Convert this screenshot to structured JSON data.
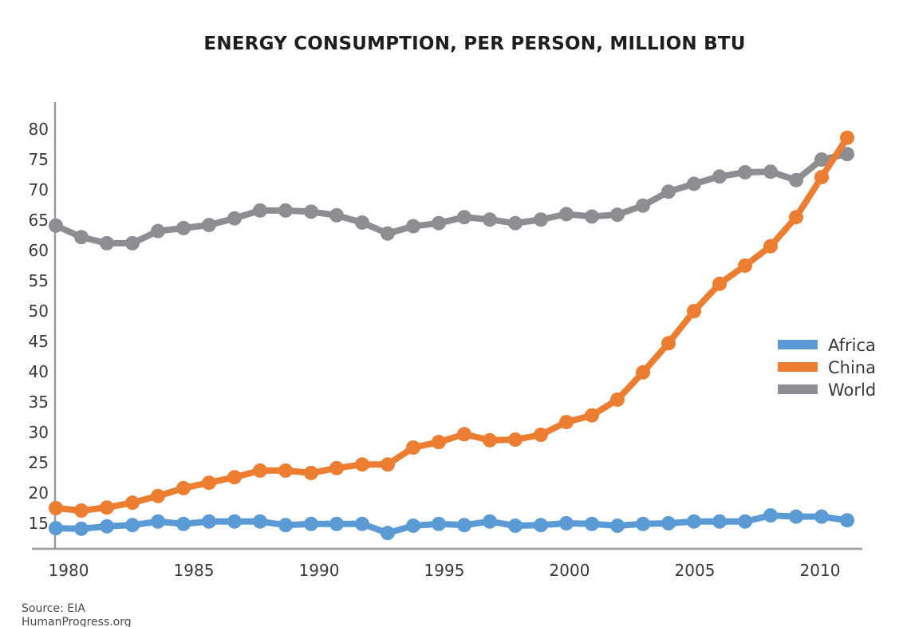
{
  "chart_data": {
    "type": "line",
    "title": "ENERGY CONSUMPTION, PER PERSON, MILLION BTU",
    "xlabel": "",
    "ylabel": "",
    "x": [
      1980,
      1981,
      1982,
      1983,
      1984,
      1985,
      1986,
      1987,
      1988,
      1989,
      1990,
      1991,
      1992,
      1993,
      1994,
      1995,
      1996,
      1997,
      1998,
      1999,
      2000,
      2001,
      2002,
      2003,
      2004,
      2005,
      2006,
      2007,
      2008,
      2009,
      2010,
      2011
    ],
    "xticks": [
      "1980",
      "1985",
      "1990",
      "1995",
      "2000",
      "2005",
      "2010"
    ],
    "xtick_values": [
      1980,
      1985,
      1990,
      1995,
      2000,
      2005,
      2010
    ],
    "yticks": [
      "15",
      "20",
      "25",
      "30",
      "35",
      "40",
      "45",
      "50",
      "55",
      "60",
      "65",
      "70",
      "75",
      "80"
    ],
    "ytick_values": [
      15,
      20,
      25,
      30,
      35,
      40,
      45,
      50,
      55,
      60,
      65,
      70,
      75,
      80
    ],
    "xlim": [
      1980,
      2012.5
    ],
    "ylim": [
      11,
      85
    ],
    "grid": false,
    "legend_position": "right",
    "markers": true,
    "series": [
      {
        "name": "Africa",
        "color": "#5B9BD5",
        "values": [
          14.2,
          14.1,
          14.5,
          14.7,
          15.3,
          14.9,
          15.3,
          15.3,
          15.3,
          14.7,
          14.9,
          14.9,
          14.9,
          13.4,
          14.6,
          14.9,
          14.7,
          15.3,
          14.6,
          14.7,
          15.0,
          14.9,
          14.6,
          14.9,
          15.0,
          15.3,
          15.3,
          15.3,
          16.3,
          16.1,
          16.1,
          15.5
        ]
      },
      {
        "name": "China",
        "color": "#ED7D31",
        "values": [
          17.5,
          17.1,
          17.6,
          18.4,
          19.5,
          20.8,
          21.7,
          22.6,
          23.7,
          23.7,
          23.3,
          24.1,
          24.7,
          24.7,
          27.5,
          28.4,
          29.7,
          28.7,
          28.8,
          29.6,
          31.7,
          32.8,
          35.4,
          39.9,
          44.7,
          50.0,
          54.5,
          57.5,
          60.7,
          65.5,
          72.1,
          78.6
        ]
      },
      {
        "name": "World",
        "color": "#8E8E92",
        "values": [
          64.1,
          62.2,
          61.2,
          61.2,
          63.2,
          63.7,
          64.2,
          65.3,
          66.6,
          66.6,
          66.4,
          65.8,
          64.6,
          62.8,
          64.0,
          64.5,
          65.5,
          65.1,
          64.5,
          65.1,
          66.0,
          65.6,
          65.9,
          67.4,
          69.7,
          71.0,
          72.2,
          72.9,
          73.0,
          71.6,
          75.0,
          75.9
        ]
      }
    ],
    "annotations": [
      "Source: EIA",
      "HumanProgress.org"
    ]
  },
  "source": {
    "line1": "Source: EIA",
    "line2": "HumanProgress.org"
  }
}
